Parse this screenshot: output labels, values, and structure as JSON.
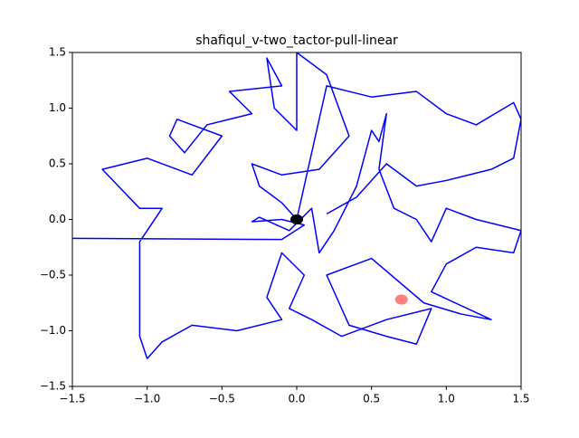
{
  "chart_data": {
    "type": "line",
    "title": "shafiqul_v-two_tactor-pull-linear",
    "xlim": [
      -1.5,
      1.5
    ],
    "ylim": [
      -1.5,
      1.5
    ],
    "xticks": [
      {
        "value": -1.5,
        "label": "−1.5"
      },
      {
        "value": -1.0,
        "label": "−1.0"
      },
      {
        "value": -0.5,
        "label": "−0.5"
      },
      {
        "value": 0.0,
        "label": "0.0"
      },
      {
        "value": 0.5,
        "label": "0.5"
      },
      {
        "value": 1.0,
        "label": "1.0"
      },
      {
        "value": 1.5,
        "label": "1.5"
      }
    ],
    "yticks": [
      {
        "value": -1.5,
        "label": "−1.5"
      },
      {
        "value": -1.0,
        "label": "−1.0"
      },
      {
        "value": -0.5,
        "label": "−0.5"
      },
      {
        "value": 0.0,
        "label": "0.0"
      },
      {
        "value": 0.5,
        "label": "0.5"
      },
      {
        "value": 1.0,
        "label": "1.0"
      },
      {
        "value": 1.5,
        "label": "1.5"
      }
    ],
    "series": [
      {
        "color": "#0000ff",
        "x": [
          -1.5,
          -0.1,
          0.05,
          -0.1,
          -0.3,
          -0.25,
          -0.05,
          0.1,
          0.15,
          0.25,
          0.4,
          0.5,
          0.55,
          0.6,
          0.55,
          0.65,
          0.8,
          0.9,
          1.0,
          1.2,
          1.5,
          1.45,
          1.2,
          1.0,
          0.9,
          1.3,
          1.1,
          0.85,
          0.5,
          0.2,
          0.35,
          0.6,
          0.8,
          0.9,
          0.6,
          0.3,
          0.1,
          -0.05,
          0.05,
          -0.1,
          -0.2,
          -0.1,
          -0.4,
          -0.7,
          -0.9,
          -1.0,
          -1.05,
          -1.05,
          -0.9,
          -1.05,
          -1.3,
          -1.0,
          -0.7,
          -0.5,
          -0.8,
          -0.85,
          -0.75,
          -0.6,
          -0.3,
          -0.45,
          -0.1,
          -0.2,
          -0.15,
          0.0,
          0.0,
          0.2,
          0.35,
          0.15,
          -0.1,
          -0.3,
          -0.25,
          -0.1,
          0.0,
          0.2,
          0.5,
          0.8,
          1.0,
          1.2,
          1.45,
          1.5,
          1.45,
          1.3,
          1.0,
          0.8,
          0.6,
          0.4,
          0.2
        ],
        "y": [
          -0.17,
          -0.18,
          -0.05,
          0.0,
          -0.02,
          0.02,
          -0.1,
          0.1,
          -0.3,
          -0.1,
          0.3,
          0.8,
          0.7,
          0.95,
          0.45,
          0.1,
          0.0,
          -0.2,
          0.1,
          0.0,
          -0.1,
          -0.3,
          -0.25,
          -0.4,
          -0.65,
          -0.9,
          -0.85,
          -0.75,
          -0.35,
          -0.5,
          -0.95,
          -1.05,
          -1.12,
          -0.8,
          -0.9,
          -1.05,
          -0.9,
          -0.8,
          -0.5,
          -0.3,
          -0.7,
          -0.9,
          -1.0,
          -0.95,
          -1.1,
          -1.25,
          -1.05,
          -0.2,
          0.1,
          0.1,
          0.45,
          0.55,
          0.4,
          0.75,
          0.9,
          0.75,
          0.6,
          0.85,
          0.95,
          1.15,
          1.2,
          1.45,
          1.0,
          0.8,
          1.5,
          1.3,
          0.75,
          0.45,
          0.4,
          0.5,
          0.3,
          0.15,
          0.0,
          1.2,
          1.1,
          1.15,
          0.95,
          0.85,
          1.05,
          0.9,
          0.55,
          0.45,
          0.35,
          0.3,
          0.5,
          0.2,
          0.05
        ]
      }
    ],
    "markers": [
      {
        "x": 0.0,
        "y": 0.0,
        "color": "#000000",
        "alpha": 1
      },
      {
        "x": 0.7,
        "y": -0.72,
        "color": "#ff0000",
        "alpha": 0.5
      }
    ]
  }
}
